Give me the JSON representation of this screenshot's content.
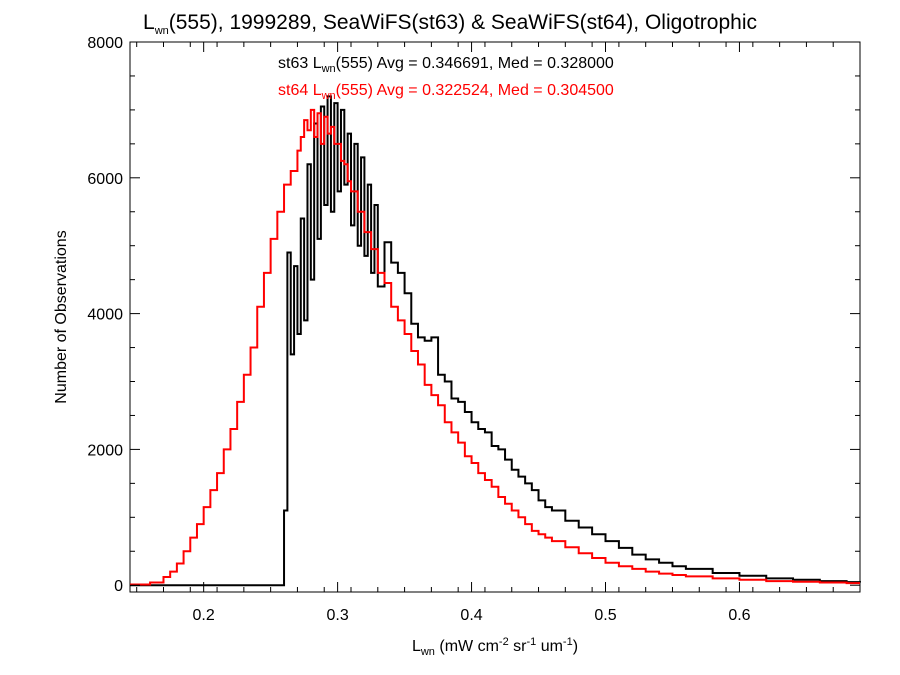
{
  "chart_data": {
    "type": "histogram-step",
    "title": {
      "main": "L",
      "sub": "wn",
      "rest": "(555), 1999289, SeaWiFS(st63) & SeaWiFS(st64), Oligotrophic"
    },
    "xlabel": {
      "main": "L",
      "sub": "wn",
      "rest": " (mW cm",
      "sup1": "-2",
      "mid": " sr",
      "sup2": "-1",
      "mid2": " um",
      "sup3": "-1",
      "end": ")"
    },
    "ylabel": "Number of Observations",
    "xlim": [
      0.145,
      0.69
    ],
    "ylim": [
      -100,
      8000
    ],
    "xticks": [
      0.2,
      0.3,
      0.4,
      0.5,
      0.6
    ],
    "xtick_labels": [
      "0.2",
      "0.3",
      "0.4",
      "0.5",
      "0.6"
    ],
    "yticks": [
      0,
      2000,
      4000,
      6000,
      8000
    ],
    "ytick_labels": [
      "0",
      "2000",
      "4000",
      "6000",
      "8000"
    ],
    "bin_width": 0.0025,
    "annotations": [
      {
        "prefix": "st63 L",
        "sub": "wn",
        "rest": "(555) Avg = 0.346691, Med = 0.328000",
        "color": "#000000"
      },
      {
        "prefix": "st64 L",
        "sub": "wn",
        "rest": "(555) Avg = 0.322524, Med = 0.304500",
        "color": "#ff0000"
      }
    ],
    "series": [
      {
        "name": "st63",
        "color": "#000000",
        "x": [
          0.145,
          0.26,
          0.2625,
          0.265,
          0.2675,
          0.27,
          0.2725,
          0.275,
          0.2775,
          0.28,
          0.2825,
          0.285,
          0.2875,
          0.29,
          0.2925,
          0.295,
          0.2975,
          0.3,
          0.3025,
          0.305,
          0.3075,
          0.31,
          0.3125,
          0.315,
          0.3175,
          0.32,
          0.3225,
          0.325,
          0.3275,
          0.33,
          0.335,
          0.34,
          0.345,
          0.35,
          0.355,
          0.36,
          0.365,
          0.37,
          0.375,
          0.38,
          0.385,
          0.39,
          0.395,
          0.4,
          0.405,
          0.41,
          0.415,
          0.42,
          0.425,
          0.43,
          0.435,
          0.44,
          0.445,
          0.45,
          0.455,
          0.46,
          0.47,
          0.48,
          0.49,
          0.5,
          0.51,
          0.52,
          0.53,
          0.54,
          0.55,
          0.56,
          0.58,
          0.6,
          0.62,
          0.64,
          0.66,
          0.68,
          0.69
        ],
        "values": [
          0,
          1100,
          4900,
          3400,
          4700,
          3700,
          5400,
          3900,
          6200,
          4500,
          6800,
          5100,
          7050,
          5600,
          7200,
          5500,
          7100,
          5800,
          7000,
          5900,
          6650,
          5300,
          6500,
          5000,
          6300,
          4850,
          5900,
          4600,
          5600,
          4400,
          5050,
          4750,
          4600,
          4300,
          3850,
          3650,
          3600,
          3650,
          3100,
          3000,
          2750,
          2700,
          2550,
          2400,
          2300,
          2250,
          2050,
          2000,
          1850,
          1700,
          1600,
          1500,
          1400,
          1250,
          1150,
          1100,
          950,
          850,
          750,
          650,
          550,
          450,
          380,
          330,
          280,
          240,
          180,
          140,
          100,
          80,
          60,
          45,
          40
        ]
      },
      {
        "name": "st64",
        "color": "#ff0000",
        "x": [
          0.145,
          0.16,
          0.17,
          0.175,
          0.18,
          0.185,
          0.19,
          0.195,
          0.2,
          0.205,
          0.21,
          0.215,
          0.22,
          0.225,
          0.23,
          0.235,
          0.24,
          0.245,
          0.25,
          0.255,
          0.26,
          0.265,
          0.27,
          0.2725,
          0.275,
          0.2775,
          0.28,
          0.2825,
          0.285,
          0.2875,
          0.29,
          0.2925,
          0.295,
          0.2975,
          0.3,
          0.3025,
          0.305,
          0.3075,
          0.31,
          0.315,
          0.32,
          0.325,
          0.33,
          0.335,
          0.34,
          0.345,
          0.35,
          0.355,
          0.36,
          0.365,
          0.37,
          0.375,
          0.38,
          0.385,
          0.39,
          0.395,
          0.4,
          0.405,
          0.41,
          0.415,
          0.42,
          0.425,
          0.43,
          0.435,
          0.44,
          0.445,
          0.45,
          0.455,
          0.46,
          0.47,
          0.48,
          0.49,
          0.5,
          0.51,
          0.52,
          0.53,
          0.54,
          0.55,
          0.56,
          0.58,
          0.6,
          0.62,
          0.64,
          0.66,
          0.68,
          0.69
        ],
        "values": [
          10,
          40,
          120,
          200,
          320,
          500,
          700,
          900,
          1150,
          1400,
          1650,
          2000,
          2300,
          2700,
          3100,
          3500,
          4100,
          4600,
          5100,
          5500,
          5900,
          6100,
          6400,
          6600,
          6850,
          6700,
          7000,
          6600,
          6950,
          6500,
          6900,
          6650,
          6750,
          6500,
          6500,
          6250,
          6200,
          5950,
          5800,
          5500,
          5200,
          4950,
          4600,
          4450,
          4100,
          3900,
          3700,
          3450,
          3250,
          2950,
          2800,
          2650,
          2400,
          2250,
          2100,
          1900,
          1800,
          1650,
          1550,
          1450,
          1300,
          1200,
          1100,
          1000,
          900,
          800,
          750,
          700,
          650,
          560,
          470,
          400,
          330,
          280,
          240,
          200,
          170,
          150,
          130,
          100,
          80,
          60,
          50,
          40,
          30,
          30
        ]
      }
    ]
  }
}
